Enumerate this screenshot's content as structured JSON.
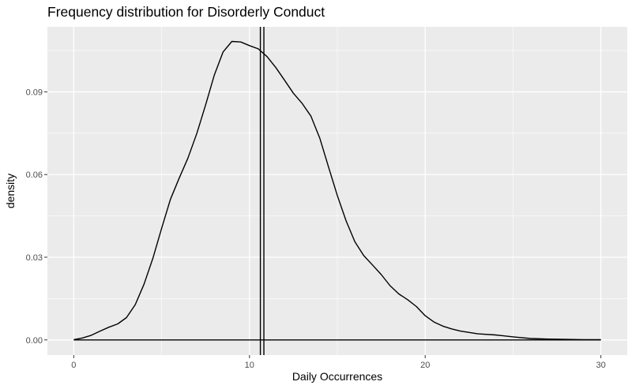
{
  "chart_data": {
    "type": "line",
    "title": "Frequency distribution for Disorderly Conduct",
    "xlabel": "Daily Occurrences",
    "ylabel": "density",
    "xlim": [
      -1.5,
      31.5
    ],
    "ylim": [
      -0.0055,
      0.1136
    ],
    "x_ticks": [
      0,
      10,
      20,
      30
    ],
    "x_tick_labels": [
      "0",
      "10",
      "20",
      "30"
    ],
    "y_ticks": [
      0.0,
      0.03,
      0.06,
      0.09
    ],
    "y_tick_labels": [
      "0.00",
      "0.03",
      "0.06",
      "0.09"
    ],
    "grid": true,
    "background": "#ebebeb",
    "gridline_color": "#ffffff",
    "line_color": "#000000",
    "series": [
      {
        "x": [
          0,
          0.5,
          1,
          1.5,
          2,
          2.5,
          3,
          3.5,
          4,
          4.5,
          5,
          5.5,
          6,
          6.5,
          7,
          7.5,
          8,
          8.5,
          9,
          9.5,
          10,
          10.5,
          11,
          11.5,
          12,
          12.5,
          13,
          13.5,
          14,
          14.5,
          15,
          15.5,
          16,
          16.5,
          17,
          17.5,
          18,
          18.5,
          19,
          19.5,
          20,
          20.5,
          21,
          21.5,
          22,
          23,
          24,
          25,
          26,
          27,
          28,
          29,
          30
        ],
        "y": [
          0.0001,
          0.0007,
          0.0017,
          0.0032,
          0.0046,
          0.0058,
          0.0081,
          0.0128,
          0.0202,
          0.0296,
          0.0405,
          0.051,
          0.0587,
          0.066,
          0.0749,
          0.0852,
          0.0961,
          0.1045,
          0.1083,
          0.1081,
          0.1068,
          0.1056,
          0.1028,
          0.0988,
          0.0942,
          0.0895,
          0.0858,
          0.0812,
          0.0732,
          0.0627,
          0.0524,
          0.0432,
          0.0356,
          0.0306,
          0.0272,
          0.0237,
          0.0197,
          0.0167,
          0.0146,
          0.0121,
          0.0088,
          0.0065,
          0.005,
          0.004,
          0.0032,
          0.0022,
          0.0018,
          0.0011,
          0.0005,
          0.0003,
          0.0002,
          0.0001,
          0.0001
        ]
      }
    ],
    "vlines": [
      10.62,
      10.82
    ]
  }
}
